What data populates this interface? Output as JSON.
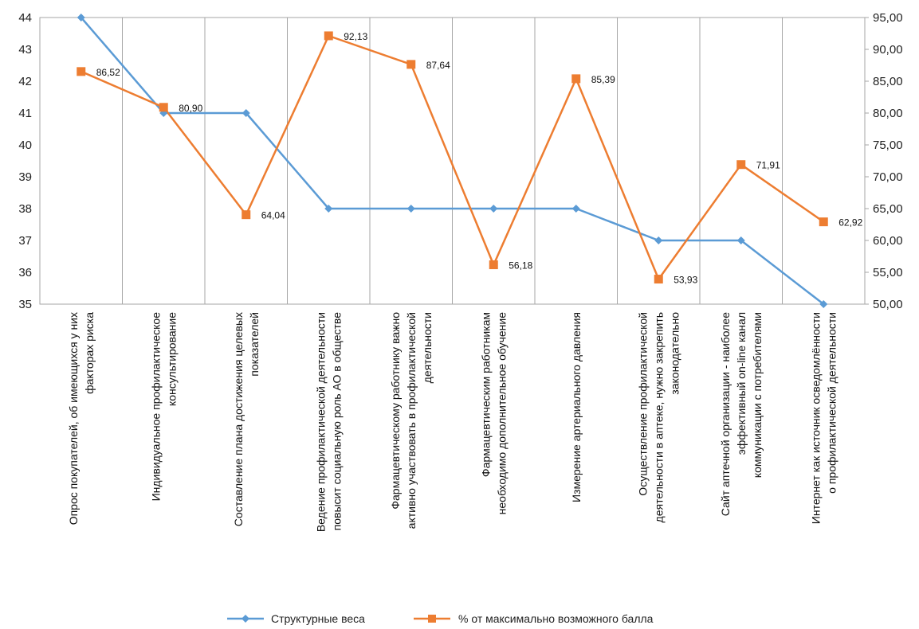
{
  "chart_data": {
    "type": "line",
    "categories": [
      [
        "Опрос покупателей, об имеющихся у них",
        "факторах риска"
      ],
      [
        "Индивидуальное профилактическое",
        "консультирование"
      ],
      [
        "Составление плана достижения целевых",
        "показателей"
      ],
      [
        "Ведение профилактической деятельности",
        "повысит социальную роль АО в обществе"
      ],
      [
        "Фармацевтическому работнику важно",
        "активно участвовать в профилактической",
        "деятельности"
      ],
      [
        "Фармацевтическим работникам",
        "необходимо дополнительное обучение"
      ],
      [
        "Измерение артериального давления"
      ],
      [
        "Осуществление профилактической",
        "деятельности в аптеке, нужно закрепить",
        "законодательно"
      ],
      [
        "Сайт аптечной организации - наиболее",
        "эффективный on-line канал",
        "коммуникации с потребителями"
      ],
      [
        "Интернет как источник осведомлённости",
        "о профилактической деятельности"
      ]
    ],
    "series": [
      {
        "name": "Структурные веса",
        "axis": "left",
        "color": "#5B9BD5",
        "marker": "diamond",
        "values": [
          44,
          41,
          41,
          38,
          38,
          38,
          38,
          37,
          37,
          35
        ]
      },
      {
        "name": "% от максимально возможного балла",
        "axis": "right",
        "color": "#ED7D31",
        "marker": "square",
        "values": [
          86.52,
          80.9,
          64.04,
          92.13,
          87.64,
          56.18,
          85.39,
          53.93,
          71.91,
          62.92
        ],
        "data_labels": [
          "86,52",
          "80,90",
          "64,04",
          "92,13",
          "87,64",
          "56,18",
          "85,39",
          "53,93",
          "71,91",
          "62,92"
        ]
      }
    ],
    "y_left": {
      "min": 35,
      "max": 44,
      "step": 1,
      "ticks": [
        "35",
        "36",
        "37",
        "38",
        "39",
        "40",
        "41",
        "42",
        "43",
        "44"
      ]
    },
    "y_right": {
      "min": 50,
      "max": 95,
      "step": 5,
      "ticks": [
        "50,00",
        "55,00",
        "60,00",
        "65,00",
        "70,00",
        "75,00",
        "80,00",
        "85,00",
        "90,00",
        "95,00"
      ]
    },
    "grid": "vertical",
    "legend_position": "bottom"
  }
}
